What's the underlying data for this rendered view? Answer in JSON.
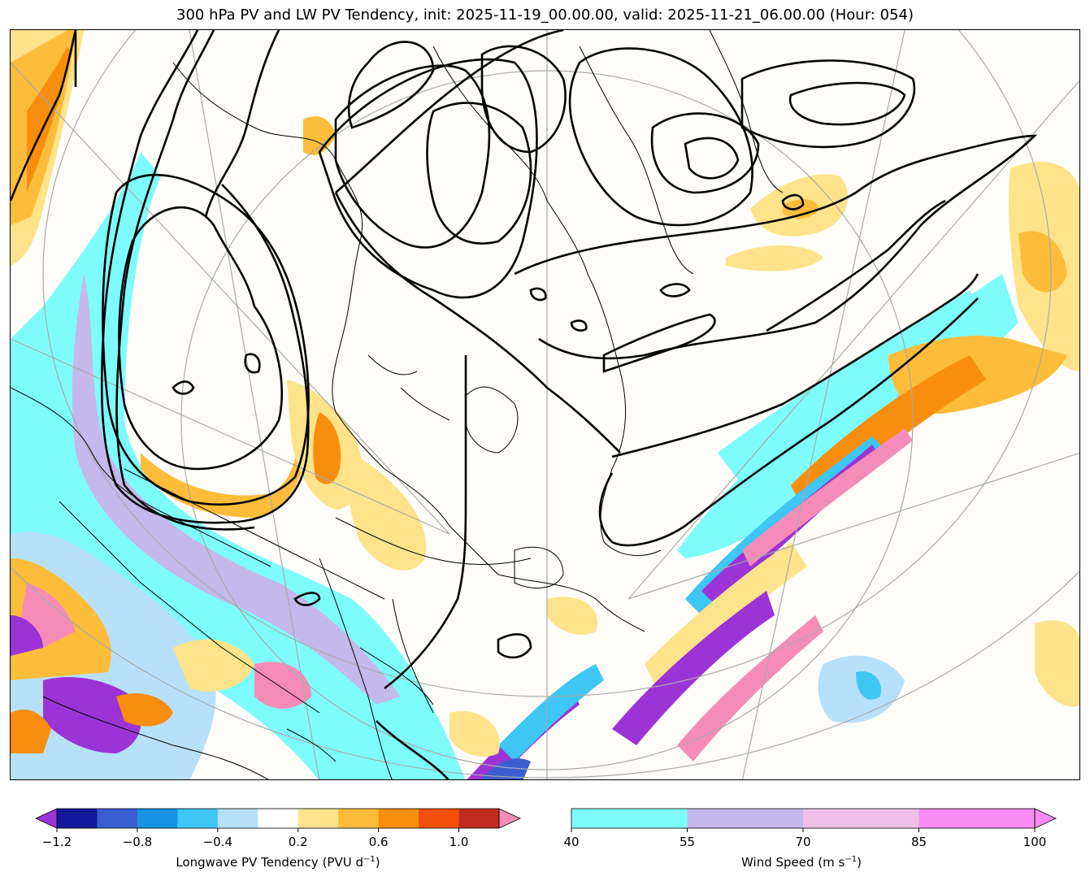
{
  "title": "300 hPa PV and LW PV Tendency, init: 2025-11-19_00.00.00, valid: 2025-11-21_06.00.00 (Hour: 054)",
  "colors": {
    "background": "#ffffff",
    "coast": "#000000",
    "graticule": "#a9a9a9",
    "pv_contour": "#000000"
  },
  "pv_tendency_colorbar": {
    "label_text": "Longwave PV Tendency (PVU d",
    "label_sup": "−1",
    "label_close": ")",
    "extend": "both",
    "ticks": [
      "−1.2",
      "−0.8",
      "−0.4",
      "0.2",
      "0.6",
      "1.0"
    ],
    "tick_values": [
      -1.2,
      -0.8,
      -0.4,
      0.2,
      0.6,
      1.0
    ],
    "levels": [
      -1.2,
      -1.0,
      -0.8,
      -0.6,
      -0.4,
      -0.2,
      0.2,
      0.4,
      0.6,
      0.8,
      1.0,
      1.2
    ],
    "under_color": "#9c33d6",
    "over_color": "#f58cb8",
    "colors": [
      "#13199a",
      "#3a5ed0",
      "#1893e3",
      "#3ec6f5",
      "#b7e1fb",
      "#ffffff",
      "#fee38a",
      "#fdbd3a",
      "#f98e0e",
      "#f24f0b",
      "#c12a1e"
    ]
  },
  "wind_colorbar": {
    "label_text": "Wind Speed (m s",
    "label_sup": "−1",
    "label_close": ")",
    "extend": "max",
    "ticks": [
      "40",
      "55",
      "70",
      "85",
      "100"
    ],
    "tick_values": [
      40,
      55,
      70,
      85,
      100
    ],
    "colors": [
      "#7efcfc",
      "#c5b8ec",
      "#f0c0ea",
      "#f88cf4"
    ],
    "over_color": "#f88cf4"
  }
}
